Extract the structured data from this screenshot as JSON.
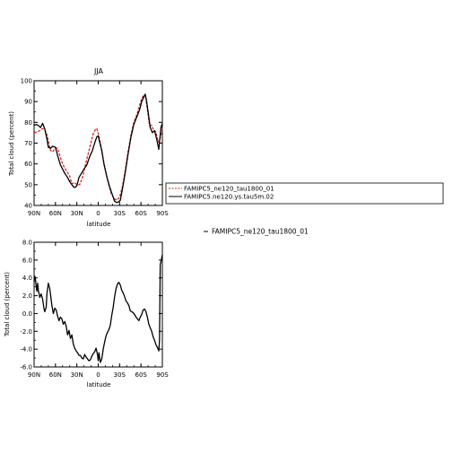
{
  "chart_data": [
    {
      "type": "line",
      "title": "JJA",
      "xlabel": "latitude",
      "ylabel": "Total cloud (percent)",
      "xlim": [
        90,
        -90
      ],
      "ylim": [
        40,
        100
      ],
      "x_ticks": [
        90,
        60,
        30,
        0,
        -30,
        -60,
        -90
      ],
      "x_tick_labels": [
        "90N",
        "60N",
        "30N",
        "0",
        "30S",
        "60S",
        "90S"
      ],
      "y_ticks": [
        40,
        50,
        60,
        70,
        80,
        90,
        100
      ],
      "y_tick_labels": [
        "40",
        "50",
        "60",
        "70",
        "80",
        "90",
        "100"
      ],
      "legend": {
        "placement": "right",
        "entries": [
          "FAMIPC5_ne120_tau1800_01",
          "FAMIPC5.ne120.ys.tau5m.02"
        ]
      },
      "series": [
        {
          "name": "FAMIPC5_ne120_tau1800_01",
          "color": "#e02020",
          "dash": true,
          "x": [
            90,
            85,
            82,
            78,
            75,
            72,
            70,
            67,
            64,
            60,
            57,
            53,
            50,
            47,
            44,
            40,
            37,
            33,
            30,
            26,
            22,
            18,
            14,
            10,
            7,
            4,
            2,
            0,
            -3,
            -6,
            -10,
            -14,
            -18,
            -22,
            -26,
            -30,
            -34,
            -38,
            -42,
            -46,
            -50,
            -54,
            -58,
            -61,
            -64,
            -66,
            -69,
            -72,
            -75,
            -78,
            -81,
            -84,
            -87,
            -90
          ],
          "values": [
            75,
            75.5,
            76,
            77,
            76.5,
            74,
            71,
            66.5,
            65.8,
            67.6,
            67.5,
            63,
            60,
            58,
            56.5,
            54,
            50.5,
            51,
            50,
            50,
            53.5,
            59.5,
            65,
            70.5,
            74.5,
            76.5,
            77,
            75,
            70,
            64,
            57,
            51,
            46,
            43.5,
            42.5,
            44,
            49,
            57,
            66,
            74,
            80,
            83.5,
            88,
            91.5,
            93,
            93.5,
            86,
            78.5,
            78.5,
            76,
            75.5,
            70.5,
            72.5,
            77
          ]
        },
        {
          "name": "FAMIPC5.ne120.ys.tau5m.02",
          "color": "#000000",
          "dash": false,
          "x": [
            90,
            87,
            84,
            81,
            78,
            75,
            72,
            70,
            67,
            64,
            60,
            57,
            53,
            50,
            47,
            44,
            40,
            37,
            34,
            32,
            30,
            27,
            24,
            20,
            16,
            12,
            8,
            5,
            2,
            0,
            -2,
            -5,
            -8,
            -12,
            -16,
            -20,
            -23,
            -26,
            -28,
            -31,
            -34,
            -38,
            -42,
            -46,
            -50,
            -54,
            -58,
            -61,
            -64,
            -66,
            -68,
            -70,
            -73,
            -76,
            -79,
            -82,
            -85,
            -88,
            -90
          ],
          "values": [
            78.5,
            79,
            78.5,
            77.5,
            79.5,
            76.8,
            72,
            68,
            67.5,
            68.5,
            68,
            64,
            59.5,
            57.5,
            55.5,
            54,
            51.5,
            50,
            48.7,
            48.8,
            49.5,
            53.5,
            55.2,
            57.5,
            59.5,
            63.5,
            66.5,
            70,
            73,
            73.5,
            70.5,
            66.5,
            60,
            54,
            49,
            45,
            42,
            41.4,
            41.6,
            42.5,
            48,
            56,
            65,
            73,
            79,
            82.5,
            86,
            90,
            92.2,
            93.5,
            90,
            85,
            77.5,
            75,
            76,
            72,
            67,
            77.5,
            79.5
          ]
        }
      ]
    },
    {
      "type": "line",
      "title": "",
      "xlabel": "latitude",
      "ylabel": "Total cloud (percent)",
      "xlim": [
        90,
        -90
      ],
      "ylim": [
        -6,
        8
      ],
      "x_ticks": [
        90,
        60,
        30,
        0,
        -30,
        -60,
        -90
      ],
      "x_tick_labels": [
        "90N",
        "60N",
        "30N",
        "0",
        "30S",
        "60S",
        "90S"
      ],
      "y_ticks": [
        -6,
        -4,
        -2,
        0,
        2,
        4,
        6,
        8
      ],
      "y_tick_labels": [
        "-6.0",
        "-4.0",
        "-2.0",
        "0.0",
        "2.0",
        "4.0",
        "6.0",
        "8.0"
      ],
      "legend": {
        "placement": "right",
        "entries": [
          "FAMIPC5_ne120_tau1800_01"
        ]
      },
      "series": [
        {
          "color": "#000000",
          "dash": false,
          "x": [
            90,
            89,
            88,
            87,
            86,
            85,
            84,
            82,
            80,
            78,
            76,
            75,
            73,
            72,
            70,
            68,
            65,
            63,
            61,
            59,
            57,
            55,
            53,
            51,
            49,
            47,
            45,
            43,
            41,
            39,
            37,
            35,
            33,
            31,
            29,
            27,
            25,
            23,
            21,
            19,
            17,
            15,
            13,
            11,
            9,
            7,
            5,
            3,
            1,
            0,
            -1,
            -3,
            -5,
            -7,
            -9,
            -11,
            -13,
            -15,
            -17,
            -19,
            -21,
            -23,
            -25,
            -27,
            -29,
            -31,
            -33,
            -35,
            -37,
            -39,
            -41,
            -43,
            -45,
            -47,
            -49,
            -51,
            -53,
            -55,
            -57,
            -59,
            -61,
            -63,
            -65,
            -67,
            -69,
            -71,
            -73,
            -75,
            -77,
            -79,
            -81,
            -83,
            -85,
            -86,
            -87,
            -88,
            -89,
            -90
          ],
          "values": [
            3.5,
            4.2,
            3.8,
            3,
            2.5,
            3.4,
            2.6,
            1.8,
            2.2,
            1.6,
            0.5,
            0.2,
            0.7,
            2.2,
            3.4,
            2.8,
            0.9,
            0,
            0.6,
            0.4,
            -0.3,
            -0.8,
            -0.4,
            -0.6,
            -1.2,
            -0.9,
            -1.4,
            -2.4,
            -1.9,
            -2.8,
            -2.4,
            -3.4,
            -3.9,
            -4.2,
            -4.4,
            -4.7,
            -4.7,
            -5,
            -5.1,
            -4.6,
            -4.9,
            -5.1,
            -5.3,
            -5.2,
            -4.8,
            -4.5,
            -4.3,
            -3.9,
            -4.6,
            -5.3,
            -4.4,
            -5.5,
            -5.1,
            -4,
            -3.2,
            -2.5,
            -2.1,
            -1.8,
            -1.3,
            -0.2,
            0.7,
            1.9,
            2.8,
            3.3,
            3.5,
            3.2,
            2.6,
            2.3,
            1.9,
            1.4,
            1.2,
            0.9,
            0.3,
            0.2,
            0.1,
            -0.1,
            -0.4,
            -0.6,
            -0.8,
            -0.4,
            -0.1,
            0.4,
            0.5,
            0.2,
            -0.4,
            -1.2,
            -1.6,
            -2,
            -2.6,
            -3,
            -3.5,
            -3.8,
            -4.2,
            -3,
            5.5,
            5.8,
            6.2,
            6.6
          ]
        }
      ]
    }
  ]
}
